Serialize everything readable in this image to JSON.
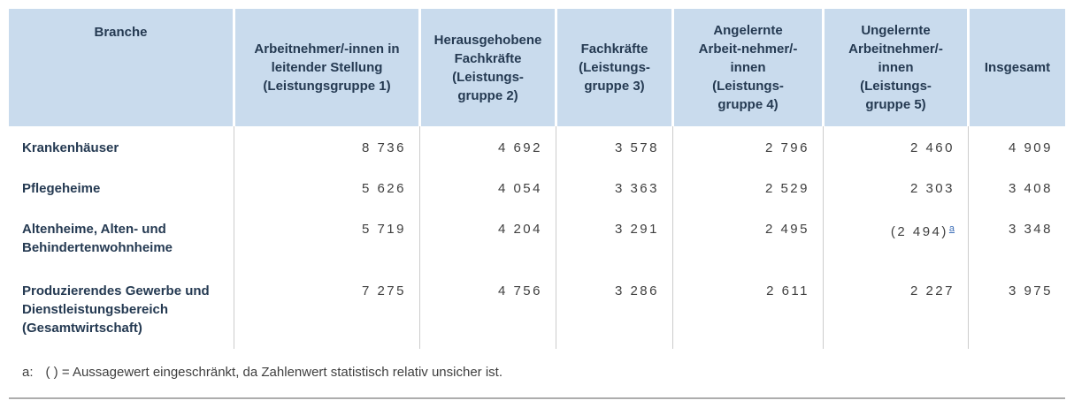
{
  "colors": {
    "header_bg": "#c9dbed",
    "header_text": "#253a52",
    "number_text": "#3f3f3f",
    "grid_line": "#cccccc",
    "bottom_rule": "#adadad",
    "note_link": "#3e6fb8"
  },
  "chart_data": {
    "type": "table",
    "columns": [
      "Branche",
      "Arbeitnehmer/-innen in\nleitender Stellung\n(Leistungsgruppe 1)",
      "Herausgehobene\nFachkräfte\n(Leistungs-\ngruppe 2)",
      "Fachkräfte\n(Leistungs-\ngruppe 3)",
      "Angelernte\nArbeit-nehmer/-\ninnen\n(Leistungs-\ngruppe 4)",
      "Ungelernte\nArbeitnehmer/-\ninnen\n(Leistungs-\ngruppe 5)",
      "Insgesamt"
    ],
    "rows": [
      {
        "branche": "Krankenhäuser",
        "values": [
          "8 736",
          "4 692",
          "3 578",
          "2 796",
          "2 460",
          "4 909"
        ]
      },
      {
        "branche": "Pflegeheime",
        "values": [
          "5 626",
          "4 054",
          "3 363",
          "2 529",
          "2 303",
          "3 408"
        ]
      },
      {
        "branche": "Altenheime, Alten- und\nBehindertenwohnheime",
        "values": [
          "5 719",
          "4 204",
          "3 291",
          "2 495",
          "(2 494)",
          "3 348"
        ],
        "note_ref": "a"
      },
      {
        "branche": "Produzierendes Gewerbe und\nDienstleistungsbereich\n(Gesamtwirtschaft)",
        "values": [
          "7 275",
          "4 756",
          "3 286",
          "2 611",
          "2 227",
          "3 975"
        ]
      }
    ]
  },
  "footnote": {
    "marker": "a:",
    "text": "( ) = Aussagewert eingeschränkt, da Zahlenwert statistisch relativ unsicher ist."
  }
}
